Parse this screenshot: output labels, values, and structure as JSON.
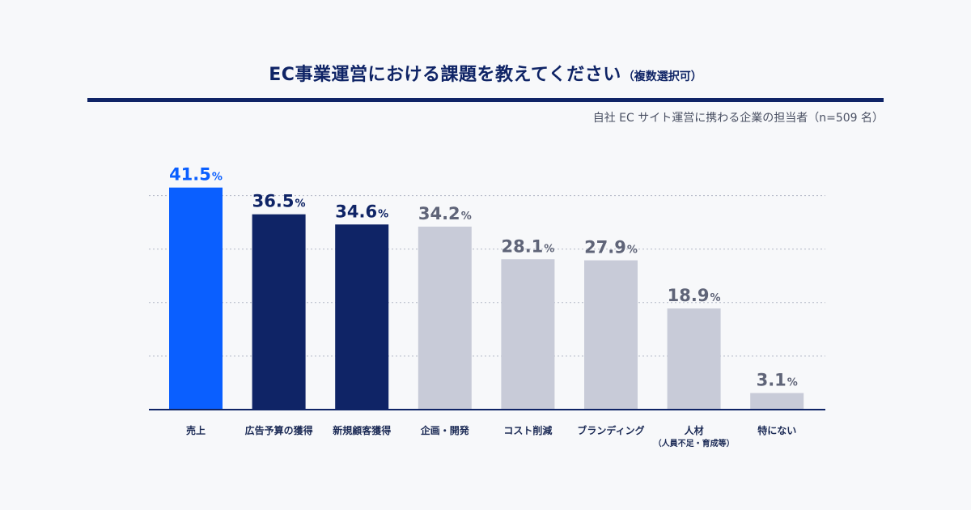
{
  "header": {
    "title": "EC事業運営における課題を教えてください",
    "title_note": "（複数選択可）",
    "respondents": "自社 EC サイト運営に携わる企業の担当者（n=509 名）"
  },
  "chart_data": {
    "type": "bar",
    "title": "EC事業運営における課題を教えてください（複数選択可）",
    "subtitle": "自社 EC サイト運営に携わる企業の担当者（n=509 名）",
    "unit": "%",
    "xlabel": "",
    "ylabel": "",
    "ylim": [
      0,
      45
    ],
    "grid": true,
    "categories": [
      "売上",
      "広告予算の獲得",
      "新規顧客獲得",
      "企画・開発",
      "コスト削減",
      "ブランディング",
      "人材",
      "特にない"
    ],
    "category_notes": [
      "",
      "",
      "",
      "",
      "",
      "",
      "（人員不足・育成等）",
      ""
    ],
    "values": [
      41.5,
      36.5,
      34.6,
      34.2,
      28.1,
      27.9,
      18.9,
      3.1
    ],
    "value_labels": [
      "41.5",
      "36.5",
      "34.6",
      "34.2",
      "28.1",
      "27.9",
      "18.9",
      "3.1"
    ],
    "colors": {
      "highlight": "#0a5fff",
      "top": "#0f2466",
      "rest": "#c8cbd8",
      "rest_label": "#5f6478",
      "highlight_label": "#0a5fff",
      "top_label": "#0f2466",
      "axis": "#0f2466",
      "grid": "#b3b7c6"
    },
    "bar_styles": [
      "highlight",
      "top",
      "top",
      "rest",
      "rest",
      "rest",
      "rest",
      "rest"
    ]
  }
}
